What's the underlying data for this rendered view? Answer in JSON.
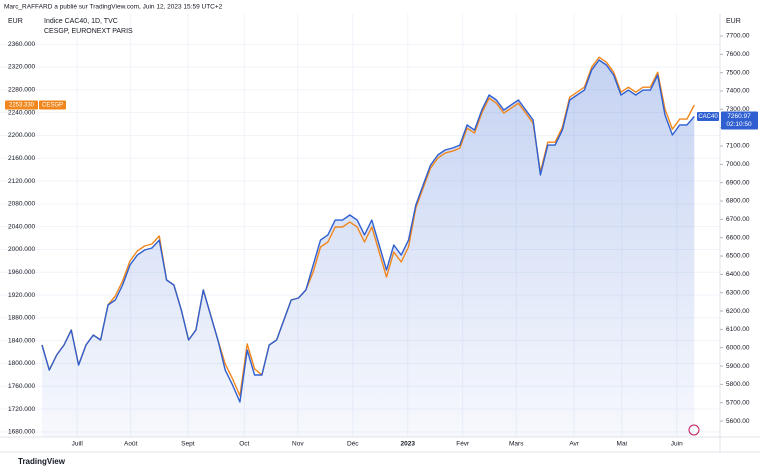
{
  "chart_data": {
    "type": "line",
    "header": "Marc_RAFFARD a publié sur TradingView.com, Juin 12, 2023 15:59 UTC+2",
    "legend_lines": [
      "Indice CAC40, 1D, TVC",
      "CESGP, EURONEXT PARIS"
    ],
    "y_axis_label": "EUR",
    "y2_axis_label": "EUR",
    "countdown": "02:10:50",
    "footer": "TradingView",
    "grid": true,
    "xlim": [
      -5.73,
      92.5
    ],
    "xticks": [
      {
        "value": 4.8,
        "label": "Juill"
      },
      {
        "value": 12.1,
        "label": "Août"
      },
      {
        "value": 19.9,
        "label": "Sept"
      },
      {
        "value": 27.6,
        "label": "Oct"
      },
      {
        "value": 34.9,
        "label": "Nov"
      },
      {
        "value": 42.4,
        "label": "Déc"
      },
      {
        "value": 49.9,
        "label": "2023"
      },
      {
        "value": 57.4,
        "label": "Févr"
      },
      {
        "value": 64.7,
        "label": "Mars"
      },
      {
        "value": 72.6,
        "label": "Avr"
      },
      {
        "value": 79.1,
        "label": "Mai"
      },
      {
        "value": 86.6,
        "label": "Juin"
      }
    ],
    "ylim": [
      1671,
      2413
    ],
    "yticks": [
      {
        "value": 1680,
        "label": "1680.000"
      },
      {
        "value": 1720,
        "label": "1720.000"
      },
      {
        "value": 1760,
        "label": "1760.000"
      },
      {
        "value": 1800,
        "label": "1800.000"
      },
      {
        "value": 1840,
        "label": "1840.000"
      },
      {
        "value": 1880,
        "label": "1880.000"
      },
      {
        "value": 1920,
        "label": "1920.000"
      },
      {
        "value": 1960,
        "label": "1960.000"
      },
      {
        "value": 2000,
        "label": "2000.000"
      },
      {
        "value": 2040,
        "label": "2040.000"
      },
      {
        "value": 2080,
        "label": "2080.000"
      },
      {
        "value": 2120,
        "label": "2120.000"
      },
      {
        "value": 2160,
        "label": "2160.000"
      },
      {
        "value": 2200,
        "label": "2200.000"
      },
      {
        "value": 2240,
        "label": "2240.000"
      },
      {
        "value": 2280,
        "label": "2280.000"
      },
      {
        "value": 2320,
        "label": "2320.000"
      },
      {
        "value": 2360,
        "label": "2360.000"
      }
    ],
    "y2lim": [
      5513,
      7820
    ],
    "y2ticks": [
      {
        "value": 5600,
        "label": "5600.00"
      },
      {
        "value": 5700,
        "label": "5700.00"
      },
      {
        "value": 5800,
        "label": "5800.00"
      },
      {
        "value": 5900,
        "label": "5900.00"
      },
      {
        "value": 6000,
        "label": "6000.00"
      },
      {
        "value": 6100,
        "label": "6100.00"
      },
      {
        "value": 6200,
        "label": "6200.00"
      },
      {
        "value": 6300,
        "label": "6300.00"
      },
      {
        "value": 6400,
        "label": "6400.00"
      },
      {
        "value": 6500,
        "label": "6500.00"
      },
      {
        "value": 6600,
        "label": "6600.00"
      },
      {
        "value": 6700,
        "label": "6700.00"
      },
      {
        "value": 6800,
        "label": "6800.00"
      },
      {
        "value": 6900,
        "label": "6900.00"
      },
      {
        "value": 7000,
        "label": "7000.00"
      },
      {
        "value": 7100,
        "label": "7100.00"
      },
      {
        "value": 7200,
        "label": "7200.00"
      },
      {
        "value": 7300,
        "label": "7300.00"
      },
      {
        "value": 7400,
        "label": "7400.00"
      },
      {
        "value": 7500,
        "label": "7500.00"
      },
      {
        "value": 7600,
        "label": "7600.00"
      },
      {
        "value": 7700,
        "label": "7700.00"
      }
    ],
    "series": [
      {
        "name": "CESGP",
        "color": "#f0861c",
        "axis": "y",
        "last_value_label": "2253.330",
        "values": [
          1832.5,
          1788.7,
          1815,
          1832.5,
          1858.8,
          1797.4,
          1832.5,
          1850,
          1841.2,
          1902.6,
          1918.3,
          1944.6,
          1979.7,
          1997.2,
          2006,
          2009.5,
          2023.5,
          1946.4,
          1937.6,
          1893.8,
          1841.2,
          1858.8,
          1928.9,
          1885,
          1841.2,
          1799.2,
          1772.9,
          1743.1,
          1834.2,
          1790.4,
          1779.9,
          1832.5,
          1841.2,
          1876.3,
          1911.3,
          1914.8,
          1928.9,
          1960.4,
          2004.2,
          2013,
          2039.3,
          2039.3,
          2048,
          2039.3,
          2013,
          2039.3,
          1995.5,
          1951.6,
          1995.5,
          1977.9,
          2004.2,
          2072.6,
          2107.6,
          2142.7,
          2160.2,
          2169,
          2172.5,
          2177.7,
          2212.8,
          2204,
          2239.1,
          2265.4,
          2256.6,
          2239.1,
          2247.8,
          2256.6,
          2239.1,
          2221.5,
          2135.7,
          2188.2,
          2188.2,
          2214.5,
          2267.1,
          2275.9,
          2284.6,
          2319.7,
          2337.2,
          2328.5,
          2310.9,
          2275.9,
          2284.6,
          2275.9,
          2284.6,
          2284.6,
          2310.9,
          2246.1,
          2211,
          2228.6,
          2228.6,
          2253.33
        ]
      },
      {
        "name": "CAC40",
        "color": "#2f5fd0",
        "axis": "y2",
        "last_value_label": "7260.97",
        "values": [
          6015,
          5878,
          5960,
          6015,
          6096,
          5905,
          6015,
          6069,
          6042,
          6233,
          6260,
          6342,
          6451,
          6505,
          6533,
          6544,
          6587,
          6369,
          6342,
          6205,
          6042,
          6096,
          6315,
          6178,
          6042,
          5878,
          5796,
          5704,
          5987,
          5851,
          5851,
          6015,
          6042,
          6151,
          6260,
          6271,
          6315,
          6451,
          6587,
          6615,
          6696,
          6696,
          6724,
          6696,
          6615,
          6696,
          6560,
          6424,
          6560,
          6505,
          6587,
          6778,
          6887,
          6996,
          7051,
          7078,
          7089,
          7105,
          7215,
          7187,
          7296,
          7378,
          7351,
          7296,
          7324,
          7351,
          7296,
          7242,
          6942,
          7105,
          7105,
          7187,
          7351,
          7378,
          7405,
          7515,
          7569,
          7542,
          7487,
          7378,
          7405,
          7378,
          7405,
          7405,
          7487,
          7269,
          7160,
          7215,
          7215,
          7260.97
        ]
      }
    ]
  }
}
